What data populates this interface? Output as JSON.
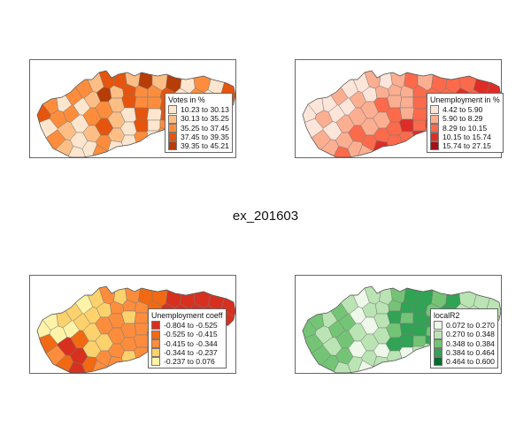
{
  "figure": {
    "title": "ex_201603"
  },
  "maps": [
    {
      "id": "votes",
      "legend_title": "Votes in %",
      "classes": [
        {
          "label": "10.23 to 30.13",
          "color": "#fee6ce"
        },
        {
          "label": "30.13 to 35.25",
          "color": "#fdbe85"
        },
        {
          "label": "35.25 to 37.45",
          "color": "#fd8d3c"
        },
        {
          "label": "37.45 to 39.35",
          "color": "#e6550d"
        },
        {
          "label": "39.35 to 45.21",
          "color": "#b83c06"
        }
      ]
    },
    {
      "id": "unemployment",
      "legend_title": "Unemployment in %",
      "classes": [
        {
          "label": "4.42 to 5.90",
          "color": "#fee5d9"
        },
        {
          "label": "5.90 to 8.29",
          "color": "#fcae91"
        },
        {
          "label": "8.29 to 10.15",
          "color": "#fb6a4a"
        },
        {
          "label": "10.15 to 15.74",
          "color": "#de2d26"
        },
        {
          "label": "15.74 to 27.15",
          "color": "#a50f15"
        }
      ]
    },
    {
      "id": "unemployment-coeff",
      "legend_title": "Unemployment coeff",
      "classes": [
        {
          "label": "-0.804 to -0.525",
          "color": "#d7301f"
        },
        {
          "label": "-0.525 to -0.415",
          "color": "#f16913"
        },
        {
          "label": "-0.415 to -0.344",
          "color": "#fd8d3c"
        },
        {
          "label": "-0.344 to -0.237",
          "color": "#fdd16b"
        },
        {
          "label": "-0.237 to 0.076",
          "color": "#fff3a8"
        }
      ]
    },
    {
      "id": "localr2",
      "legend_title": "localR2",
      "classes": [
        {
          "label": "0.072 to 0.270",
          "color": "#edf8e9"
        },
        {
          "label": "0.270 to 0.348",
          "color": "#bae4b3"
        },
        {
          "label": "0.348 to 0.384",
          "color": "#74c476"
        },
        {
          "label": "0.384 to 0.464",
          "color": "#31a354"
        },
        {
          "label": "0.464 to 0.600",
          "color": "#006d2c"
        }
      ]
    }
  ]
}
